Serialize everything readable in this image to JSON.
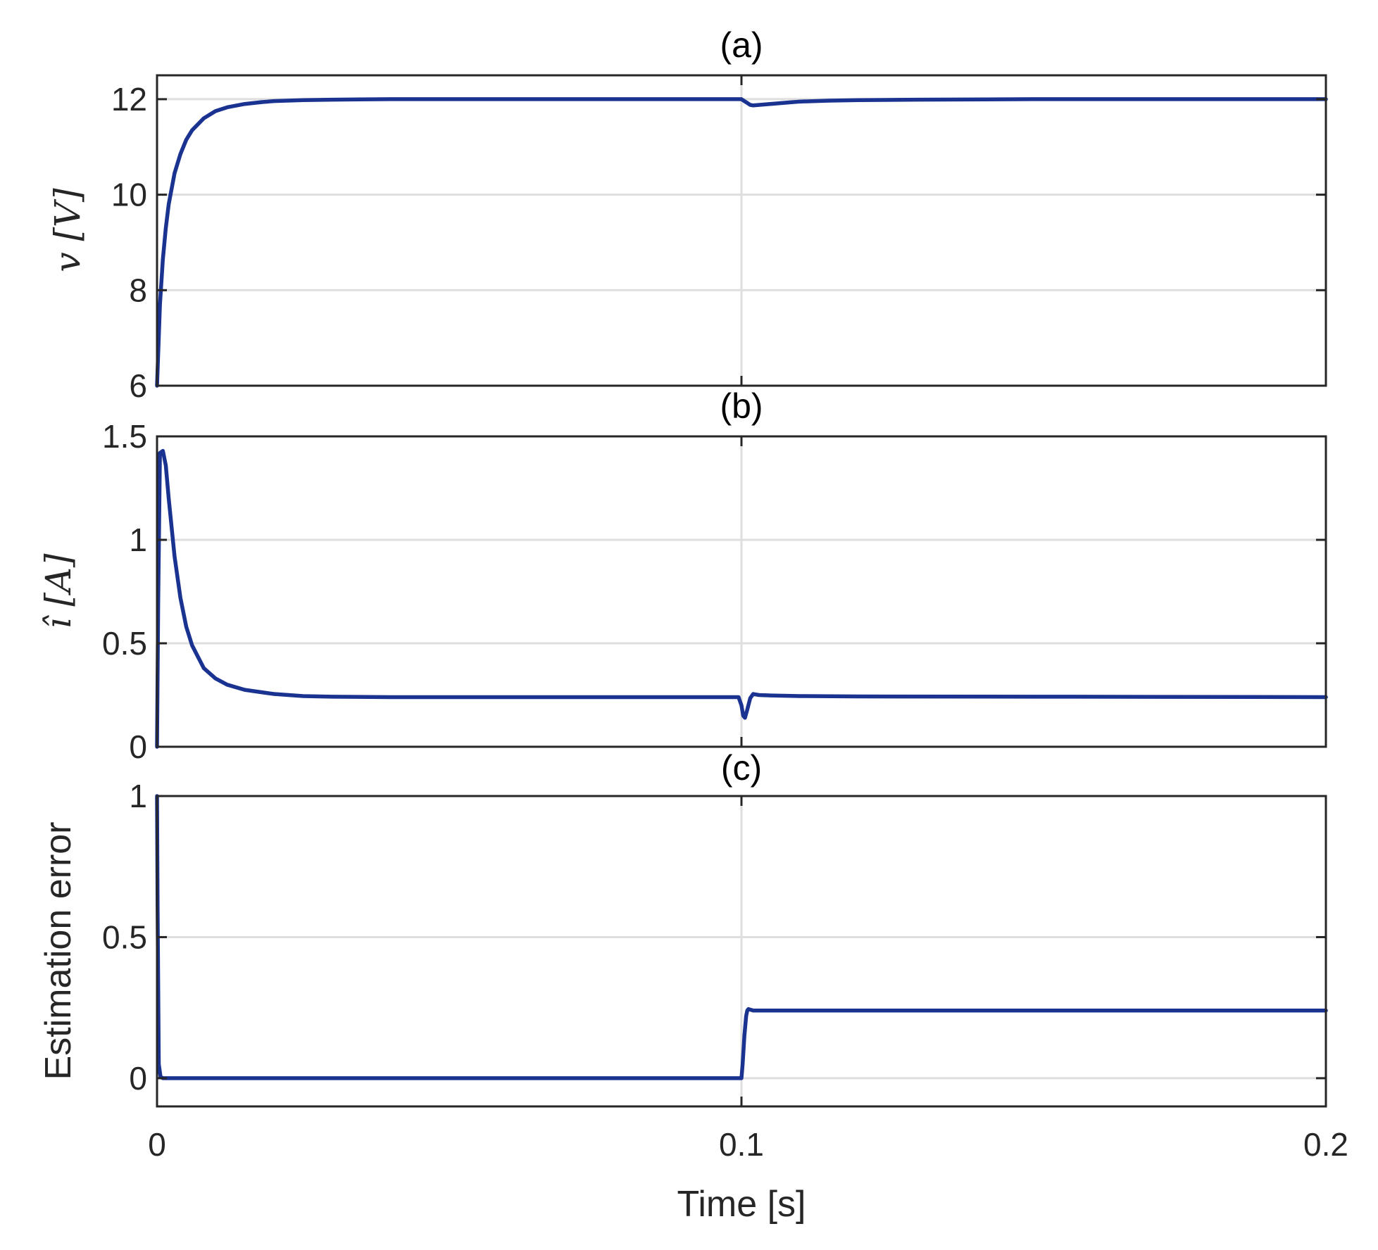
{
  "chart_data": [
    {
      "type": "line",
      "title": "(a)",
      "xlabel": "",
      "ylabel": "v [V]",
      "xlim": [
        0,
        0.2
      ],
      "ylim": [
        6,
        12.5
      ],
      "xticks": [
        0,
        0.1,
        0.2
      ],
      "yticks": [
        6,
        8,
        10,
        12
      ],
      "ytick_labels": [
        "6",
        "8",
        "10",
        "12"
      ],
      "grid": true,
      "line_color": "#1a3391",
      "series": [
        {
          "x": [
            0,
            0.0005,
            0.001,
            0.0015,
            0.002,
            0.003,
            0.004,
            0.005,
            0.006,
            0.008,
            0.01,
            0.012,
            0.015,
            0.018,
            0.02,
            0.025,
            0.03,
            0.04,
            0.05,
            0.06,
            0.07,
            0.08,
            0.09,
            0.1,
            0.1005,
            0.101,
            0.1015,
            0.102,
            0.104,
            0.106,
            0.108,
            0.11,
            0.115,
            0.12,
            0.13,
            0.15,
            0.17,
            0.2
          ],
          "y": [
            6.0,
            7.7,
            8.65,
            9.3,
            9.8,
            10.45,
            10.85,
            11.15,
            11.35,
            11.6,
            11.75,
            11.83,
            11.9,
            11.94,
            11.96,
            11.98,
            11.99,
            12.0,
            12.0,
            12.0,
            12.0,
            12.0,
            12.0,
            12.0,
            11.96,
            11.92,
            11.88,
            11.87,
            11.89,
            11.91,
            11.93,
            11.95,
            11.97,
            11.98,
            11.99,
            12.0,
            12.0,
            12.0
          ]
        }
      ]
    },
    {
      "type": "line",
      "title": "(b)",
      "xlabel": "",
      "ylabel": "î [A]",
      "xlim": [
        0,
        0.2
      ],
      "ylim": [
        0,
        1.5
      ],
      "xticks": [
        0,
        0.1,
        0.2
      ],
      "yticks": [
        0,
        0.5,
        1,
        1.5
      ],
      "ytick_labels": [
        "0",
        "0.5",
        "1",
        "1.5"
      ],
      "grid": true,
      "line_color": "#1a3391",
      "series": [
        {
          "x": [
            0,
            0.0002,
            0.0005,
            0.001,
            0.0015,
            0.002,
            0.003,
            0.004,
            0.005,
            0.006,
            0.008,
            0.01,
            0.012,
            0.015,
            0.02,
            0.025,
            0.03,
            0.04,
            0.05,
            0.06,
            0.08,
            0.0995,
            0.1,
            0.1003,
            0.1006,
            0.101,
            0.1015,
            0.102,
            0.103,
            0.105,
            0.11,
            0.12,
            0.15,
            0.2
          ],
          "y": [
            0.0,
            0.7,
            1.42,
            1.43,
            1.36,
            1.2,
            0.92,
            0.72,
            0.58,
            0.49,
            0.38,
            0.33,
            0.3,
            0.275,
            0.255,
            0.245,
            0.242,
            0.24,
            0.24,
            0.24,
            0.24,
            0.24,
            0.2,
            0.15,
            0.14,
            0.18,
            0.235,
            0.255,
            0.25,
            0.248,
            0.245,
            0.243,
            0.242,
            0.24
          ]
        }
      ]
    },
    {
      "type": "line",
      "title": "(c)",
      "xlabel": "Time [s]",
      "ylabel": "Estimation error",
      "xlim": [
        0,
        0.2
      ],
      "ylim": [
        -0.1,
        1
      ],
      "xticks": [
        0,
        0.1,
        0.2
      ],
      "xtick_labels": [
        "0",
        "0.1",
        "0.2"
      ],
      "yticks": [
        0,
        0.5,
        1
      ],
      "ytick_labels": [
        "0",
        "0.5",
        "1"
      ],
      "grid": true,
      "line_color": "#1a3391",
      "series": [
        {
          "x": [
            0,
            0.0001,
            0.0003,
            0.0006,
            0.001,
            0.002,
            0.05,
            0.0999,
            0.1,
            0.1002,
            0.1005,
            0.1008,
            0.101,
            0.1012,
            0.1015,
            0.102,
            0.103,
            0.105,
            0.11,
            0.15,
            0.2
          ],
          "y": [
            1.0,
            0.6,
            0.05,
            0.005,
            0.0,
            0.0,
            0.0,
            0.0,
            0.0,
            0.05,
            0.15,
            0.22,
            0.24,
            0.245,
            0.243,
            0.24,
            0.24,
            0.24,
            0.24,
            0.24,
            0.24
          ]
        }
      ]
    }
  ]
}
